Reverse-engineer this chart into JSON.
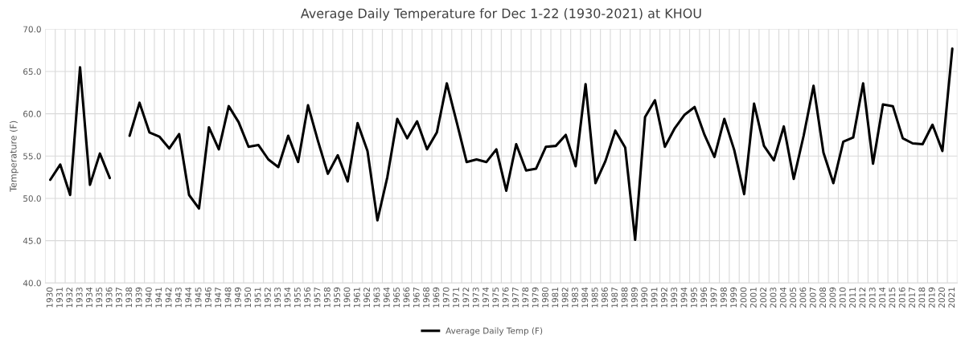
{
  "chart_data": {
    "type": "line",
    "title": "Average Daily Temperature for Dec 1-22 (1930-2021) at KHOU",
    "ylabel": "Temperature (F)",
    "categories": [
      "1930",
      "1931",
      "1932",
      "1933",
      "1934",
      "1935",
      "1936",
      "1937",
      "1938",
      "1939",
      "1940",
      "1941",
      "1942",
      "1943",
      "1944",
      "1945",
      "1946",
      "1947",
      "1948",
      "1949",
      "1950",
      "1951",
      "1952",
      "1953",
      "1954",
      "1955",
      "1956",
      "1957",
      "1958",
      "1959",
      "1960",
      "1961",
      "1962",
      "1963",
      "1964",
      "1965",
      "1966",
      "1967",
      "1968",
      "1969",
      "1970",
      "1971",
      "1972",
      "1973",
      "1974",
      "1975",
      "1976",
      "1977",
      "1978",
      "1979",
      "1980",
      "1981",
      "1982",
      "1983",
      "1984",
      "1985",
      "1986",
      "1987",
      "1988",
      "1989",
      "1990",
      "1991",
      "1992",
      "1993",
      "1994",
      "1995",
      "1996",
      "1997",
      "1998",
      "1999",
      "2000",
      "2001",
      "2002",
      "2003",
      "2004",
      "2005",
      "2006",
      "2007",
      "2008",
      "2009",
      "2010",
      "2011",
      "2012",
      "2013",
      "2014",
      "2015",
      "2016",
      "2017",
      "2018",
      "2019",
      "2020",
      "2021"
    ],
    "series": [
      {
        "name": "Average Daily Temp (F)",
        "color": "#000000",
        "values": [
          52.2,
          54.0,
          50.4,
          65.5,
          51.6,
          55.3,
          52.4,
          null,
          57.4,
          61.3,
          57.8,
          57.3,
          55.9,
          57.6,
          50.4,
          48.8,
          58.4,
          55.8,
          60.9,
          59.0,
          56.1,
          56.3,
          54.6,
          53.7,
          57.4,
          54.3,
          61.0,
          56.8,
          52.9,
          55.1,
          52.0,
          58.9,
          55.6,
          47.4,
          52.5,
          59.4,
          57.1,
          59.1,
          55.8,
          57.8,
          63.6,
          59.0,
          54.3,
          54.6,
          54.3,
          55.8,
          50.9,
          56.4,
          53.3,
          53.5,
          56.1,
          56.2,
          57.5,
          53.8,
          63.5,
          51.8,
          54.4,
          58.0,
          56.0,
          45.1,
          59.6,
          61.6,
          56.1,
          58.3,
          59.9,
          60.8,
          57.5,
          54.9,
          59.4,
          55.7,
          50.5,
          61.2,
          56.2,
          54.5,
          58.5,
          52.3,
          57.4,
          63.3,
          55.4,
          51.8,
          56.7,
          57.2,
          63.6,
          54.1,
          61.1,
          60.9,
          57.1,
          56.5,
          56.4,
          58.7,
          55.6,
          67.7
        ]
      }
    ],
    "ylim": [
      40,
      70
    ],
    "yticks": [
      {
        "value": 40,
        "label": "40.0"
      },
      {
        "value": 45,
        "label": "45.0"
      },
      {
        "value": 50,
        "label": "50.0"
      },
      {
        "value": 55,
        "label": "55.0"
      },
      {
        "value": 60,
        "label": "60.0"
      },
      {
        "value": 65,
        "label": "65.0"
      },
      {
        "value": 70,
        "label": "70.0"
      }
    ],
    "grid": true,
    "legend": "bottom",
    "marker": "none",
    "line_style": "solid"
  }
}
